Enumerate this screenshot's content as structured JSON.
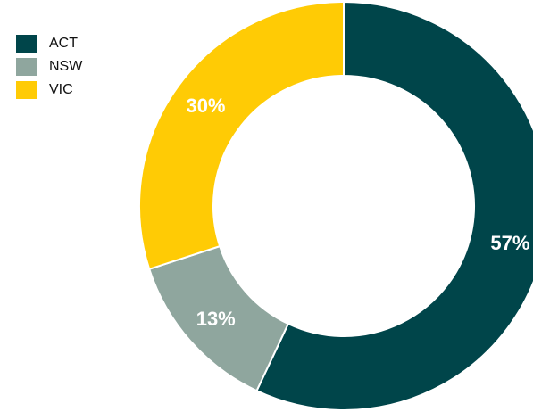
{
  "chart_data": {
    "type": "pie",
    "categories": [
      "ACT",
      "NSW",
      "VIC"
    ],
    "values": [
      57,
      13,
      30
    ],
    "value_labels": [
      "57%",
      "13%",
      "30%"
    ],
    "colors": [
      "#00454A",
      "#8FA69E",
      "#FFCB05"
    ],
    "legend_position": "top-left",
    "donut": true,
    "start_angle_deg": 0,
    "direction": "clockwise"
  }
}
